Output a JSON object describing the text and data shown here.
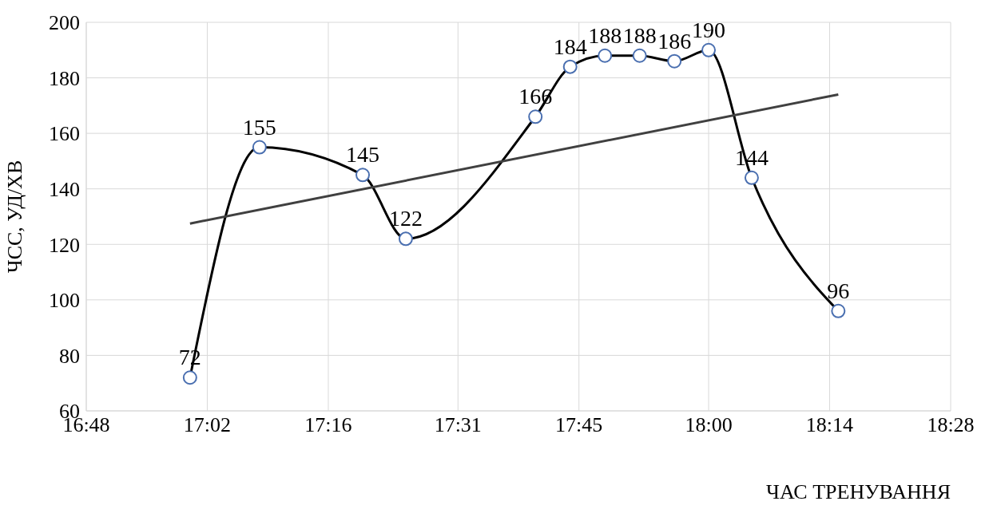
{
  "chart_data": {
    "type": "line",
    "xlabel": "ЧАС ТРЕНУВАННЯ",
    "ylabel": "ЧСС, УД/ХВ",
    "xlim": [
      16.8,
      18.4667
    ],
    "xticks": [
      {
        "value": 16.8,
        "label": "16:48"
      },
      {
        "value": 17.0333,
        "label": "17:02"
      },
      {
        "value": 17.2667,
        "label": "17:16"
      },
      {
        "value": 17.5167,
        "label": "17:31"
      },
      {
        "value": 17.75,
        "label": "17:45"
      },
      {
        "value": 18.0,
        "label": "18:00"
      },
      {
        "value": 18.2333,
        "label": "18:14"
      },
      {
        "value": 18.4667,
        "label": "18:28"
      }
    ],
    "ylim": [
      60,
      200
    ],
    "yticks": [
      60,
      80,
      100,
      120,
      140,
      160,
      180,
      200
    ],
    "grid": true,
    "marker": "circle",
    "series": [
      {
        "color": "#000000",
        "x": [
          17.0,
          17.134,
          17.333,
          17.416,
          17.666,
          17.733,
          17.8,
          17.867,
          17.934,
          18.0,
          18.083,
          18.25
        ],
        "values": [
          72,
          155,
          145,
          122,
          166,
          184,
          188,
          188,
          186,
          190,
          144,
          96
        ],
        "value_labels": [
          "72",
          "155",
          "145",
          "122",
          "166",
          "184",
          "188",
          "188",
          "186",
          "190",
          "144",
          "96"
        ]
      },
      {
        "color": "#404040",
        "marker": "none",
        "x": [
          17.0,
          18.25
        ],
        "values": [
          127.5,
          174
        ]
      }
    ]
  }
}
